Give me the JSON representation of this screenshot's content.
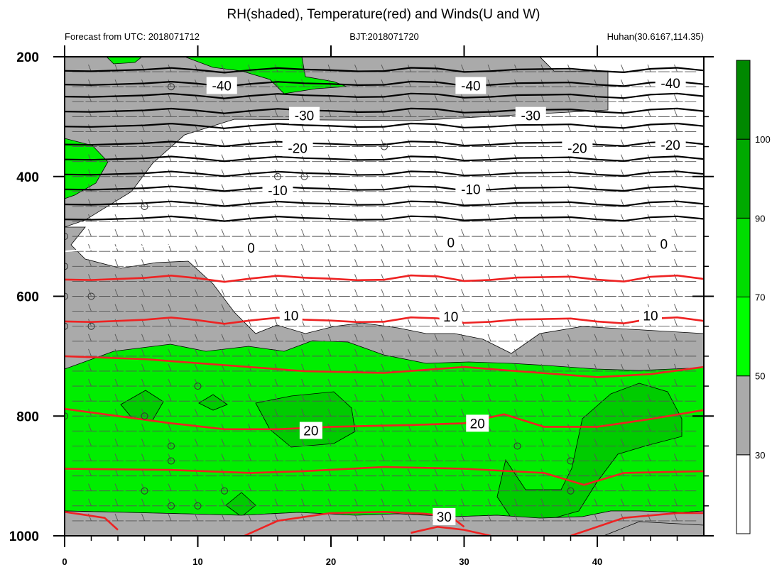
{
  "figure": {
    "title": "RH(shaded), Temperature(red) and Winds(U and W)",
    "subtitle_left": "Forecast from UTC: 2018071712",
    "subtitle_center": "BJT:2018071720",
    "subtitle_right": "Huhan(30.6167,114.35)"
  },
  "chart_data": {
    "type": "heatmap",
    "title": "RH(shaded), Temperature(red) and Winds(U and W)",
    "x": {
      "range": [
        0,
        48
      ],
      "ticks": [
        0,
        10,
        20,
        30,
        40
      ]
    },
    "y": {
      "range": [
        1000,
        200
      ],
      "ticks": [
        1000,
        800,
        600,
        400,
        200
      ],
      "reversed": true
    },
    "rh_shading": {
      "levels": [
        30,
        50,
        70,
        90,
        100
      ],
      "colors": [
        "#ffffff",
        "#aaaaaa",
        "#00ff00",
        "#00dd00",
        "#00aa00",
        "#008800"
      ],
      "colorbar_labels": [
        "30",
        "50",
        "70",
        "90",
        "100"
      ]
    },
    "temperature_contours": [
      {
        "label": "-40",
        "color": "#000000",
        "label_positions": [
          [
            11.8,
            248
          ],
          [
            30.5,
            248
          ],
          [
            45.5,
            244
          ]
        ]
      },
      {
        "label": "-30",
        "color": "#000000",
        "label_positions": [
          [
            18,
            298
          ],
          [
            35,
            298
          ]
        ]
      },
      {
        "label": "-20",
        "color": "#000000",
        "label_positions": [
          [
            17.5,
            352
          ],
          [
            38.5,
            352
          ],
          [
            45.5,
            347
          ]
        ]
      },
      {
        "label": "-10",
        "color": "#000000",
        "label_positions": [
          [
            16,
            423
          ],
          [
            30.5,
            421
          ]
        ]
      },
      {
        "label": "0",
        "color": "#000000",
        "label_positions": [
          [
            14,
            519
          ],
          [
            29,
            510
          ],
          [
            45,
            512
          ]
        ]
      },
      {
        "label": "10",
        "color": "#ee2222",
        "label_positions": [
          [
            17,
            632
          ],
          [
            29,
            634
          ],
          [
            44,
            632
          ]
        ]
      },
      {
        "label": "20",
        "color": "#ee2222",
        "label_positions": [
          [
            18.5,
            824
          ],
          [
            31,
            812
          ]
        ]
      },
      {
        "label": "30",
        "color": "#ee2222",
        "label_positions": [
          [
            28.5,
            968
          ]
        ]
      }
    ]
  }
}
